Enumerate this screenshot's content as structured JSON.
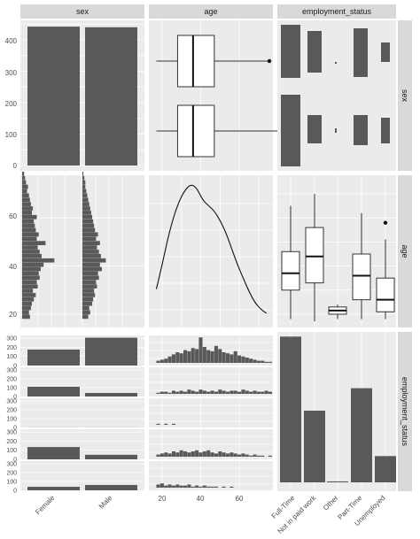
{
  "chart_data": {
    "type": "pairs",
    "variables": [
      "sex",
      "age",
      "employment_status"
    ],
    "column_strips": [
      "sex",
      "age",
      "employment_status"
    ],
    "row_strips": [
      "sex",
      "age",
      "employment_status"
    ],
    "sex_levels": [
      "Female",
      "Male"
    ],
    "employment_levels": [
      "Full-Time",
      "Not in paid work",
      "Other",
      "Part-Time",
      "Unemployed"
    ],
    "panels": {
      "sex_bar": {
        "type": "bar",
        "categories": [
          "Female",
          "Male"
        ],
        "values": [
          442,
          440
        ],
        "ylim": [
          0,
          460
        ],
        "yticks": [
          "0",
          "100",
          "200",
          "300",
          "400"
        ]
      },
      "age_by_sex_box": {
        "type": "boxplot",
        "groups": [
          {
            "name": "Male",
            "min": 17,
            "q1": 28,
            "median": 36,
            "q3": 47,
            "max": 76,
            "outliers": [
              86
            ]
          },
          {
            "name": "Female",
            "min": 17,
            "q1": 28,
            "median": 36,
            "q3": 47,
            "max": 80,
            "outliers": []
          }
        ],
        "xlim": [
          10,
          90
        ]
      },
      "emp_by_sex_tiles": {
        "type": "proportional-bar",
        "rows": [
          "Male",
          "Female"
        ],
        "columns": [
          "Full-Time",
          "Not in paid work",
          "Other",
          "Part-Time",
          "Unemployed"
        ],
        "column_share": [
          0.344,
          0.17,
          0.012,
          0.276,
          0.124
        ],
        "male_top_share": [
          0.45,
          0.5,
          0.5,
          0.6,
          0.25
        ]
      },
      "age_by_sex_hist": {
        "type": "histogram",
        "bins_from": 18,
        "bin_width": 1.8,
        "female_counts": [
          8,
          7,
          9,
          10,
          12,
          14,
          11,
          16,
          15,
          18,
          17,
          19,
          22,
          33,
          20,
          18,
          16,
          24,
          15,
          17,
          14,
          13,
          12,
          15,
          10,
          11,
          9,
          8,
          7,
          5,
          6,
          4,
          3,
          2
        ],
        "male_counts": [
          6,
          8,
          7,
          10,
          11,
          13,
          12,
          15,
          14,
          17,
          16,
          20,
          18,
          24,
          19,
          17,
          15,
          18,
          14,
          16,
          13,
          12,
          11,
          10,
          9,
          8,
          7,
          6,
          5,
          4,
          3,
          3,
          2,
          1
        ],
        "ylim": [
          17,
          74
        ],
        "yticks": [
          "20",
          "40",
          "60"
        ]
      },
      "age_density": {
        "type": "line",
        "x": [
          17,
          20,
          23,
          26,
          29,
          32,
          35,
          38,
          41,
          44,
          47,
          50,
          53,
          56,
          59,
          62,
          65,
          68,
          71,
          74
        ],
        "y": [
          0.22,
          0.4,
          0.6,
          0.76,
          0.88,
          0.96,
          1.0,
          0.97,
          0.88,
          0.84,
          0.8,
          0.73,
          0.64,
          0.52,
          0.4,
          0.3,
          0.2,
          0.12,
          0.07,
          0.04
        ]
      },
      "age_by_emp_box": {
        "type": "boxplot",
        "groups": [
          {
            "name": "Full-Time",
            "min": 18,
            "q1": 30,
            "median": 37,
            "q3": 46,
            "max": 65,
            "outliers": []
          },
          {
            "name": "Not in paid work",
            "min": 17,
            "q1": 33,
            "median": 44,
            "q3": 56,
            "max": 70,
            "outliers": []
          },
          {
            "name": "Other",
            "min": 18,
            "q1": 20,
            "median": 21.5,
            "q3": 23,
            "max": 24,
            "outliers": []
          },
          {
            "name": "Part-Time",
            "min": 18,
            "q1": 26,
            "median": 36,
            "q3": 45,
            "max": 62,
            "outliers": []
          },
          {
            "name": "Unemployed",
            "min": 18,
            "q1": 21,
            "median": 26,
            "q3": 35,
            "max": 51,
            "outliers": [
              58
            ]
          }
        ],
        "ylim": [
          17,
          74
        ],
        "yticks": [
          "20",
          "40",
          "60"
        ]
      },
      "emp_by_sex_bars": {
        "type": "bar",
        "rows": [
          "Full-Time",
          "Not in paid work",
          "Other",
          "Part-Time",
          "Unemployed"
        ],
        "female": [
          175,
          110,
          1,
          135,
          40
        ],
        "male": [
          305,
          40,
          1,
          50,
          60
        ],
        "ylim": [
          0,
          330
        ]
      },
      "age_by_emp_hist": {
        "type": "histogram",
        "rows": [
          "Full-Time",
          "Not in paid work",
          "Other",
          "Part-Time",
          "Unemployed"
        ],
        "xticks": [
          "20",
          "40",
          "60"
        ],
        "xlim": [
          10,
          90
        ]
      },
      "emp_bar": {
        "type": "bar",
        "categories": [
          "Full-Time",
          "Not in paid work",
          "Other",
          "Part-Time",
          "Unemployed"
        ],
        "values": [
          305,
          150,
          2,
          197,
          55
        ],
        "ylim": [
          0,
          320
        ]
      }
    },
    "bottom_ticks": {
      "sex": [
        "Female",
        "Male"
      ],
      "age": [
        "20",
        "40",
        "60"
      ],
      "employment_status": [
        "Full-Time",
        "Not in paid work",
        "Other",
        "Part-Time",
        "Unemployed"
      ]
    },
    "left_ticks": {
      "sex": [
        "0",
        "100",
        "200",
        "300",
        "400"
      ],
      "age": [
        "20",
        "40",
        "60"
      ],
      "employment_status": [
        "0",
        "100",
        "200",
        "300",
        "0",
        "100",
        "200",
        "300",
        "0",
        "100",
        "200",
        "300",
        "0",
        "100",
        "200",
        "300",
        "0",
        "100",
        "200",
        "300"
      ]
    },
    "colors": {
      "bar": "#595959",
      "panel": "#ebebeb",
      "strip": "#d9d9d9",
      "grid": "#ffffff"
    }
  }
}
